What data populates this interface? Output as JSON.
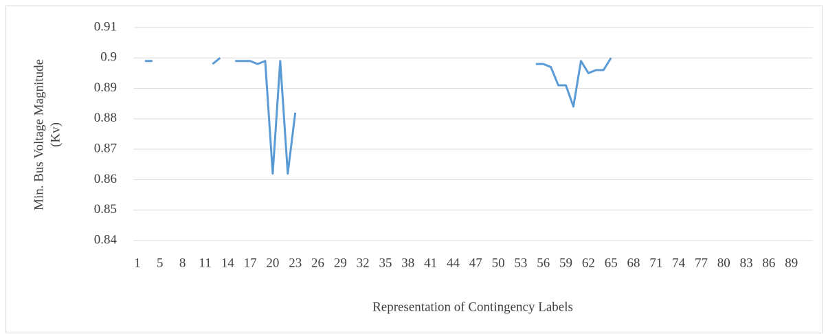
{
  "chart_data": {
    "type": "line",
    "y_label": [
      "Min. Bus Voltage Magnitude",
      "(Kv)"
    ],
    "x_label": "Representation of Contingency Labels",
    "categories": [
      "1",
      null,
      null,
      "5",
      null,
      null,
      "8",
      null,
      null,
      "11",
      null,
      null,
      "14",
      null,
      null,
      "17",
      null,
      null,
      "20",
      null,
      null,
      "23",
      null,
      null,
      "26",
      null,
      null,
      "29",
      null,
      null,
      "32",
      null,
      null,
      "35",
      null,
      null,
      "38",
      null,
      null,
      "41",
      null,
      null,
      "44",
      null,
      null,
      "47",
      null,
      null,
      "50",
      null,
      null,
      "53",
      null,
      null,
      "56",
      null,
      null,
      "59",
      null,
      null,
      "62",
      null,
      null,
      "65",
      null,
      null,
      "68",
      null,
      null,
      "71",
      null,
      null,
      "74",
      null,
      null,
      "77",
      null,
      null,
      "80",
      null,
      null,
      "83",
      null,
      null,
      "86",
      null,
      null,
      "89",
      null,
      null
    ],
    "values": [
      null,
      0.899,
      0.899,
      null,
      null,
      null,
      null,
      null,
      null,
      null,
      0.898,
      0.9,
      null,
      0.899,
      0.899,
      0.899,
      0.898,
      0.899,
      0.862,
      0.899,
      0.862,
      0.882,
      null,
      null,
      null,
      null,
      null,
      null,
      null,
      null,
      null,
      null,
      null,
      null,
      null,
      null,
      null,
      null,
      null,
      null,
      null,
      null,
      null,
      null,
      null,
      null,
      null,
      null,
      null,
      null,
      null,
      null,
      null,
      0.898,
      0.898,
      0.897,
      0.891,
      0.891,
      0.884,
      0.899,
      0.895,
      0.896,
      0.896,
      0.9,
      null,
      null,
      null,
      null,
      null,
      null,
      null,
      null,
      null,
      null,
      null,
      null,
      null,
      null,
      null,
      null,
      null,
      null,
      null,
      null,
      null,
      null,
      null,
      null,
      null,
      null
    ],
    "color": "#5b9bd5",
    "ylim": [
      0.84,
      0.91
    ],
    "yticks": [
      0.84,
      0.85,
      0.86,
      0.87,
      0.88,
      0.89,
      0.9,
      0.91
    ],
    "grid": true
  }
}
